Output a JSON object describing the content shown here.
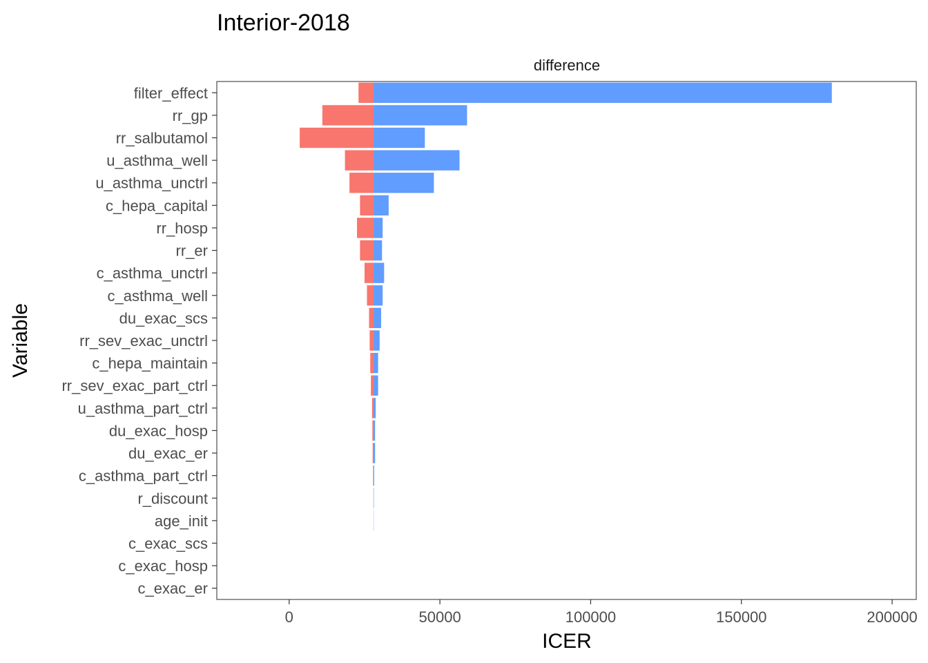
{
  "chart_data": {
    "type": "bar",
    "subtype": "tornado",
    "title": "Interior-2018",
    "facet_label": "difference",
    "xlabel": "ICER",
    "ylabel": "Variable",
    "xlim": [
      -24000,
      208000
    ],
    "xticks": [
      0,
      50000,
      100000,
      150000,
      200000
    ],
    "xtick_labels": [
      "0",
      "50000",
      "100000",
      "150000",
      "200000"
    ],
    "base_value": 28000,
    "grid": false,
    "legend": "none",
    "colors": {
      "low": "#F8766D",
      "high": "#619CFF"
    },
    "categories": [
      "filter_effect",
      "rr_gp",
      "rr_salbutamol",
      "u_asthma_well",
      "u_asthma_unctrl",
      "c_hepa_capital",
      "rr_hosp",
      "rr_er",
      "c_asthma_unctrl",
      "c_asthma_well",
      "du_exac_scs",
      "rr_sev_exac_unctrl",
      "c_hepa_maintain",
      "rr_sev_exac_part_ctrl",
      "u_asthma_part_ctrl",
      "du_exac_hosp",
      "du_exac_er",
      "c_asthma_part_ctrl",
      "r_discount",
      "age_init",
      "c_exac_scs",
      "c_exac_hosp",
      "c_exac_er"
    ],
    "series": [
      {
        "name": "low",
        "values": [
          23000,
          11000,
          3500,
          18500,
          20000,
          23500,
          22500,
          23500,
          25000,
          25800,
          26500,
          26700,
          26900,
          27100,
          27500,
          27600,
          27700,
          27850,
          27950,
          27970,
          28000,
          28000,
          28000
        ]
      },
      {
        "name": "high",
        "values": [
          180000,
          59000,
          45000,
          56500,
          48000,
          33000,
          31000,
          30800,
          31500,
          31000,
          30500,
          30000,
          29500,
          29500,
          28700,
          28500,
          28500,
          28200,
          28100,
          28050,
          28000,
          28000,
          28000
        ]
      }
    ]
  }
}
